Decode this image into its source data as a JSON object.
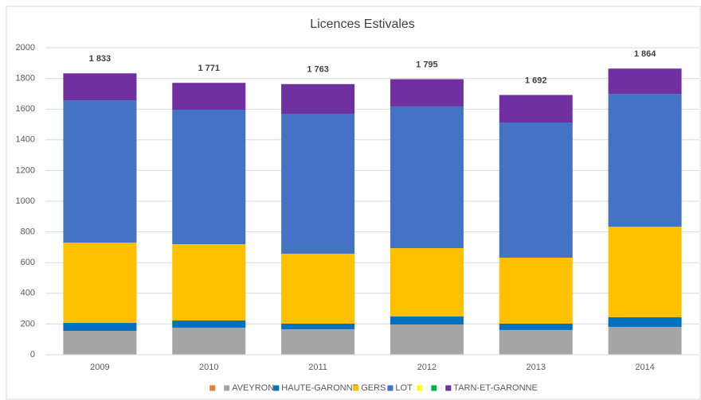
{
  "chart_data": {
    "type": "stacked_bar",
    "title": "Licences Estivales",
    "categories": [
      "2009",
      "2010",
      "2011",
      "2012",
      "2013",
      "2014"
    ],
    "series": [
      {
        "name": null,
        "color": "#ed7d31",
        "values": [
          0,
          0,
          0,
          0,
          0,
          0
        ]
      },
      {
        "name": "AVEYRON",
        "color": "#a5a5a5",
        "values": [
          155,
          176,
          166,
          197,
          161,
          181
        ]
      },
      {
        "name": "HAUTE-GARONNE",
        "color": "#0070c0",
        "values": [
          52,
          47,
          36,
          52,
          41,
          63
        ]
      },
      {
        "name": "GERS",
        "color": "#ffc000",
        "values": [
          523,
          497,
          456,
          445,
          430,
          590
        ]
      },
      {
        "name": "LOT",
        "color": "#4472c4",
        "values": [
          928,
          876,
          912,
          923,
          881,
          865
        ]
      },
      {
        "name": null,
        "color": "#ffff00",
        "values": [
          0,
          0,
          0,
          0,
          0,
          0
        ]
      },
      {
        "name": null,
        "color": "#00b050",
        "values": [
          0,
          0,
          0,
          0,
          0,
          0
        ]
      },
      {
        "name": "TARN-ET-GARONNE",
        "color": "#7030a0",
        "values": [
          175,
          175,
          193,
          178,
          179,
          165
        ]
      }
    ],
    "totals": [
      1833,
      1771,
      1763,
      1795,
      1692,
      1864
    ],
    "total_labels": [
      "1 833",
      "1 771",
      "1 763",
      "1 795",
      "1 692",
      "1 864"
    ],
    "ylim": [
      0,
      2000
    ],
    "yticks": [
      0,
      200,
      400,
      600,
      800,
      1000,
      1200,
      1400,
      1600,
      1800,
      2000
    ],
    "grid": true,
    "legend": "bottom"
  }
}
